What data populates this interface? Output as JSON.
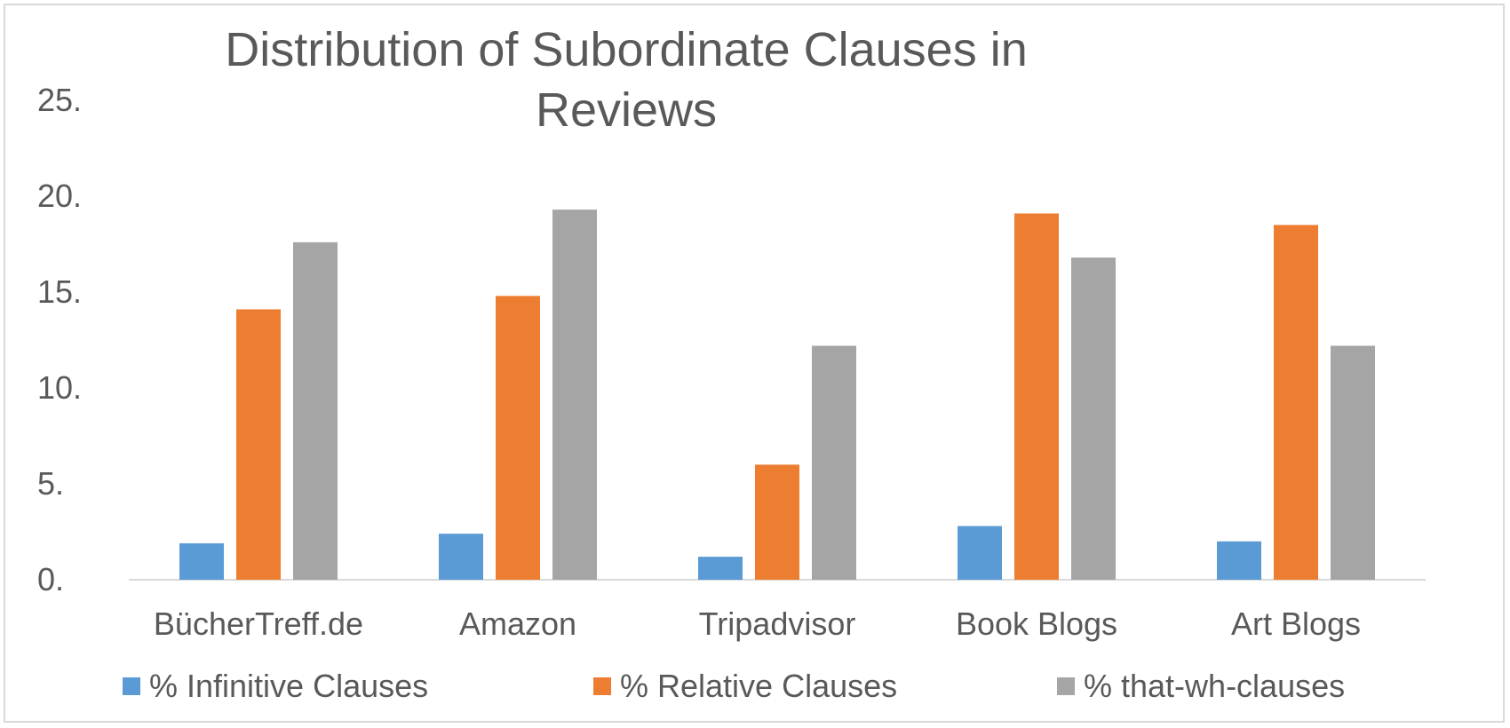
{
  "chart_data": {
    "type": "bar",
    "title": "Distribution of Subordinate Clauses in Reviews",
    "categories": [
      "BücherTreff.de",
      "Amazon",
      "Tripadvisor",
      "Book Blogs",
      "Art Blogs"
    ],
    "series": [
      {
        "name": "% Infinitive Clauses",
        "color": "#5b9bd5",
        "values": [
          1.9,
          2.4,
          1.2,
          2.8,
          2.0
        ]
      },
      {
        "name": "% Relative Clauses",
        "color": "#ed7d31",
        "values": [
          14.1,
          14.8,
          6.0,
          19.1,
          18.5
        ]
      },
      {
        "name": "% that-wh-clauses",
        "color": "#a5a5a5",
        "values": [
          17.6,
          19.3,
          12.2,
          16.8,
          12.2
        ]
      }
    ],
    "yticks": [
      "0.",
      "5.",
      "10.",
      "15.",
      "20.",
      "25."
    ],
    "ylim": [
      0,
      25
    ],
    "xlabel": "",
    "ylabel": "",
    "grid": false,
    "legend_position": "bottom"
  }
}
